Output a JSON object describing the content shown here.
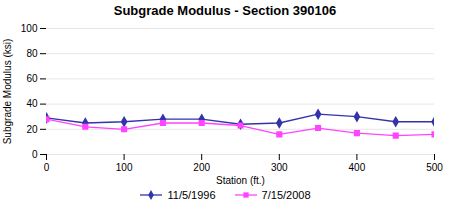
{
  "chart_data": {
    "type": "line",
    "title": "Subgrade Modulus - Section 390106",
    "xlabel": "Station (ft.)",
    "ylabel": "Subgrade Modulus (ksi)",
    "x": [
      0,
      50,
      100,
      150,
      200,
      250,
      300,
      350,
      400,
      450,
      500
    ],
    "series": [
      {
        "name": "11/5/1996",
        "color": "#3333aa",
        "marker": "diamond",
        "values": [
          29,
          25,
          26,
          28,
          28,
          24,
          25,
          32,
          30,
          26,
          26
        ]
      },
      {
        "name": "7/15/2008",
        "color": "#ff44ff",
        "marker": "square",
        "values": [
          28,
          22,
          20,
          25,
          25,
          23,
          16,
          21,
          17,
          15,
          16
        ]
      }
    ],
    "xlim": [
      0,
      500
    ],
    "ylim": [
      0,
      100
    ],
    "xticks": [
      0,
      100,
      200,
      300,
      400,
      500
    ],
    "yticks": [
      0,
      20,
      40,
      60,
      80,
      100
    ],
    "grid": "y",
    "legend": "bottom"
  }
}
